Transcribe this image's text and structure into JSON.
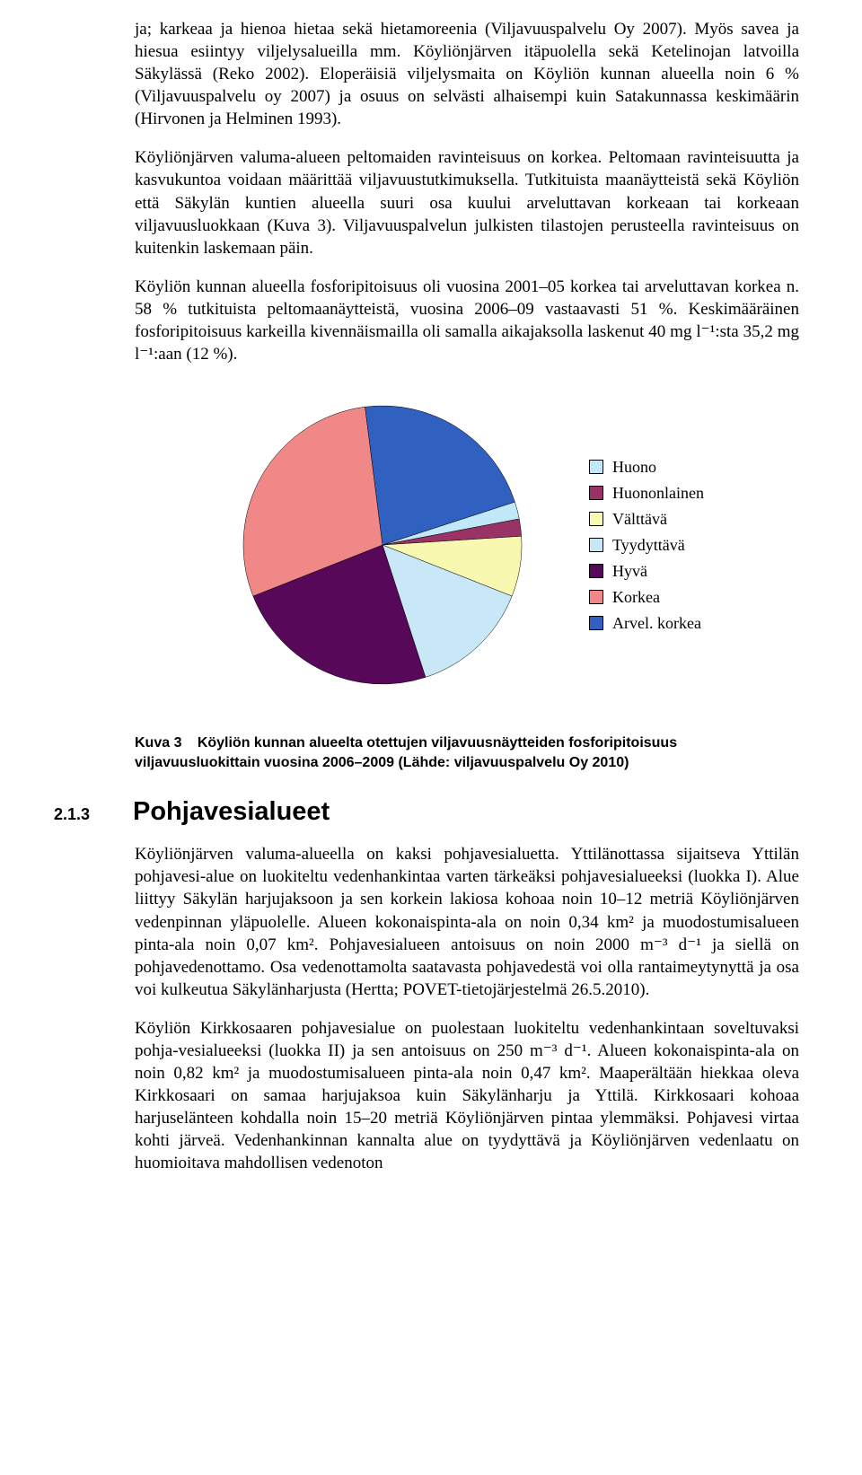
{
  "paragraphs": {
    "p1": "ja; karkeaa ja hienoa hietaa sekä hietamoreenia (Viljavuuspalvelu Oy 2007). Myös savea ja hiesua esiintyy viljelysalueilla mm. Köyliönjärven itäpuolella sekä Ketelinojan latvoilla Säkylässä (Reko 2002). Eloperäisiä viljelysmaita on Köyliön kunnan alueella noin 6 % (Viljavuuspalvelu oy 2007) ja osuus on selvästi alhaisempi kuin Satakunnassa keskimäärin (Hirvonen ja Helminen 1993).",
    "p2": "Köyliönjärven valuma-alueen peltomaiden ravinteisuus on korkea. Peltomaan ravinteisuutta ja kasvukuntoa voidaan määrittää viljavuustutkimuksella. Tutkituista maanäytteistä sekä Köyliön että Säkylän kuntien alueella suuri osa kuului arveluttavan korkeaan tai korkeaan viljavuusluokkaan (Kuva 3). Viljavuuspalvelun julkisten tilastojen perusteella ravinteisuus on kuitenkin laskemaan päin.",
    "p3": "Köyliön kunnan alueella fosforipitoisuus oli vuosina 2001–05 korkea tai arveluttavan korkea n. 58 % tutkituista peltomaanäytteistä, vuosina 2006–09 vastaavasti 51 %. Keskimääräinen fosforipitoisuus karkeilla kivennäismailla oli samalla aikajaksolla laskenut 40 mg l⁻¹:sta 35,2 mg l⁻¹:aan (12 %).",
    "p4": "Köyliönjärven valuma-alueella on kaksi pohjavesialuetta. Yttilänottassa sijaitseva Yttilän pohjavesi-alue on luokiteltu vedenhankintaa varten tärkeäksi pohjavesialueeksi (luokka I). Alue liittyy Säkylän harjujaksoon ja sen korkein lakiosa kohoaa noin 10–12 metriä Köyliönjärven vedenpinnan yläpuolelle. Alueen kokonaispinta-ala on noin 0,34 km² ja muodostumisalueen pinta-ala noin 0,07 km². Pohjavesialueen antoisuus on noin 2000 m⁻³ d⁻¹ ja siellä on pohjavedenottamo. Osa vedenottamolta saatavasta pohjavedestä voi olla rantaimeytynyttä ja osa voi kulkeutua Säkylänharjusta (Hertta; POVET-tietojärjestelmä 26.5.2010).",
    "p5": "Köyliön Kirkkosaaren pohjavesialue on puolestaan luokiteltu vedenhankintaan soveltuvaksi pohja-vesialueeksi (luokka II) ja sen antoisuus on 250 m⁻³ d⁻¹. Alueen kokonaispinta-ala on noin 0,82 km² ja muodostumisalueen pinta-ala noin 0,47 km². Maaperältään hiekkaa oleva Kirkkosaari on samaa harjujaksoa kuin Säkylänharju ja Yttilä. Kirkkosaari kohoaa harjuselänteen kohdalla noin 15–20 metriä Köyliönjärven pintaa ylemmäksi. Pohjavesi virtaa kohti järveä. Vedenhankinnan kannalta alue on tyydyttävä ja Köyliönjärven vedenlaatu on huomioitava mahdollisen vedenoton"
  },
  "chart": {
    "type": "pie",
    "background_color": "#ffffff",
    "slice_border_color": "#000000",
    "slice_border_width": 0.5,
    "label_fontsize": 18,
    "slices": [
      {
        "label": "Huono",
        "value": 2,
        "color": "#c0e8f8"
      },
      {
        "label": "Huononlainen",
        "value": 2,
        "color": "#993366"
      },
      {
        "label": "Välttävä",
        "value": 7,
        "color": "#f8f8b0"
      },
      {
        "label": "Tyydyttävä",
        "value": 14,
        "color": "#c8e8f8"
      },
      {
        "label": "Hyvä",
        "value": 24,
        "color": "#580858"
      },
      {
        "label": "Korkea",
        "value": 29,
        "color": "#f08888"
      },
      {
        "label": "Arvel. korkea",
        "value": 22,
        "color": "#3060c0"
      }
    ],
    "start_angle_deg": 342
  },
  "caption": {
    "lead": "Kuva 3",
    "text": "Köyliön kunnan alueelta otettujen viljavuusnäytteiden fosforipitoisuus viljavuusluokittain vuosina 2006–2009 (Lähde: viljavuuspalvelu Oy 2010)"
  },
  "section": {
    "number": "2.1.3",
    "title": "Pohjavesialueet"
  }
}
